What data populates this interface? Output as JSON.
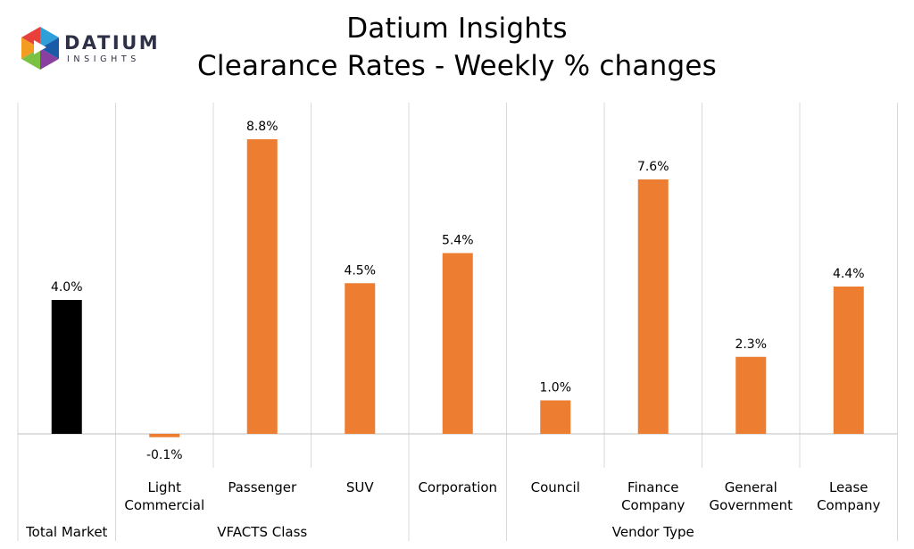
{
  "brand": {
    "logo_text_top": "DATIUM",
    "logo_text_bottom": "INSIGHTS",
    "logo_colors": [
      "#2e9fd8",
      "#e8403a",
      "#f39c1f",
      "#7bc143",
      "#8a3fa0",
      "#1b5aa6"
    ]
  },
  "title_line1": "Datium Insights",
  "title_line2": "Clearance Rates - Weekly % changes",
  "chart_data": {
    "type": "bar",
    "categories": [
      "Total Market",
      "Light Commercial",
      "Passenger",
      "SUV",
      "Corporation",
      "Council",
      "Finance Company",
      "General Government",
      "Lease Company"
    ],
    "category_labels": [
      [
        ""
      ],
      [
        "Light",
        "Commercial"
      ],
      [
        "Passenger"
      ],
      [
        "SUV"
      ],
      [
        "Corporation"
      ],
      [
        "Council"
      ],
      [
        "Finance",
        "Company"
      ],
      [
        "General",
        "Government"
      ],
      [
        "Lease",
        "Company"
      ]
    ],
    "values": [
      4.0,
      -0.1,
      8.8,
      4.5,
      5.4,
      1.0,
      7.6,
      2.3,
      4.4
    ],
    "data_labels": [
      "4.0%",
      "-0.1%",
      "8.8%",
      "4.5%",
      "5.4%",
      "1.0%",
      "7.6%",
      "2.3%",
      "4.4%"
    ],
    "groups": [
      {
        "label": "Total Market",
        "categories": [
          "Total Market"
        ]
      },
      {
        "label": "VFACTS Class",
        "categories": [
          "Light Commercial",
          "Passenger",
          "SUV"
        ]
      },
      {
        "label": "Vendor Type",
        "categories": [
          "Corporation",
          "Council",
          "Finance Company",
          "General Government",
          "Lease Company"
        ]
      }
    ],
    "colors": {
      "total": "#000000",
      "bars": "#ed7d31",
      "dividers": "#d9d9d9",
      "axis": "#bfbfbf"
    },
    "ylim": [
      -1.0,
      10.0
    ],
    "grid": false,
    "legend": "none"
  }
}
